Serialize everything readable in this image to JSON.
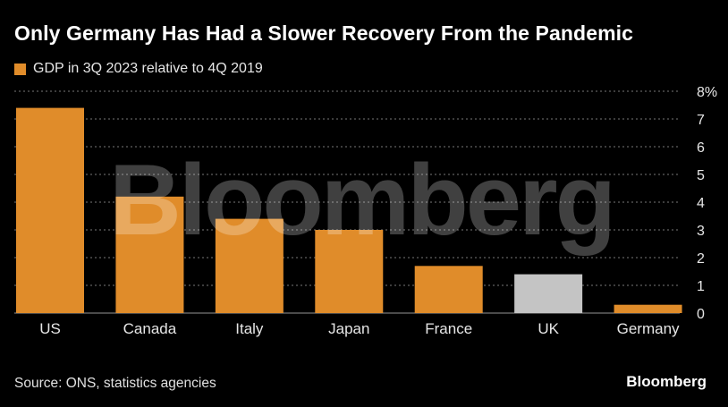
{
  "title": "Only Germany Has Had a Slower Recovery From the Pandemic",
  "legend": {
    "label": "GDP in 3Q 2023 relative to 4Q 2019",
    "color": "#e08c2a"
  },
  "source": "Source: ONS, statistics agencies",
  "brand": "Bloomberg",
  "watermark": "Bloomberg",
  "colors": {
    "primary": "#e08c2a",
    "highlight": "#c4c4c4",
    "grid": "#777777",
    "text": "#e6e6e6"
  },
  "chart_data": {
    "type": "bar",
    "categories": [
      "US",
      "Canada",
      "Italy",
      "Japan",
      "France",
      "UK",
      "Germany"
    ],
    "values": [
      7.4,
      4.2,
      3.4,
      3.0,
      1.7,
      1.4,
      0.3
    ],
    "highlight": [
      "UK"
    ],
    "ylim": [
      0,
      8
    ],
    "yticks": [
      0,
      1,
      2,
      3,
      4,
      5,
      6,
      7,
      8
    ],
    "ytick_labels": [
      "0",
      "1",
      "2",
      "3",
      "4",
      "5",
      "6",
      "7",
      "8%"
    ],
    "grid": true,
    "yaxis_side": "right",
    "xlabel": "",
    "ylabel": ""
  }
}
